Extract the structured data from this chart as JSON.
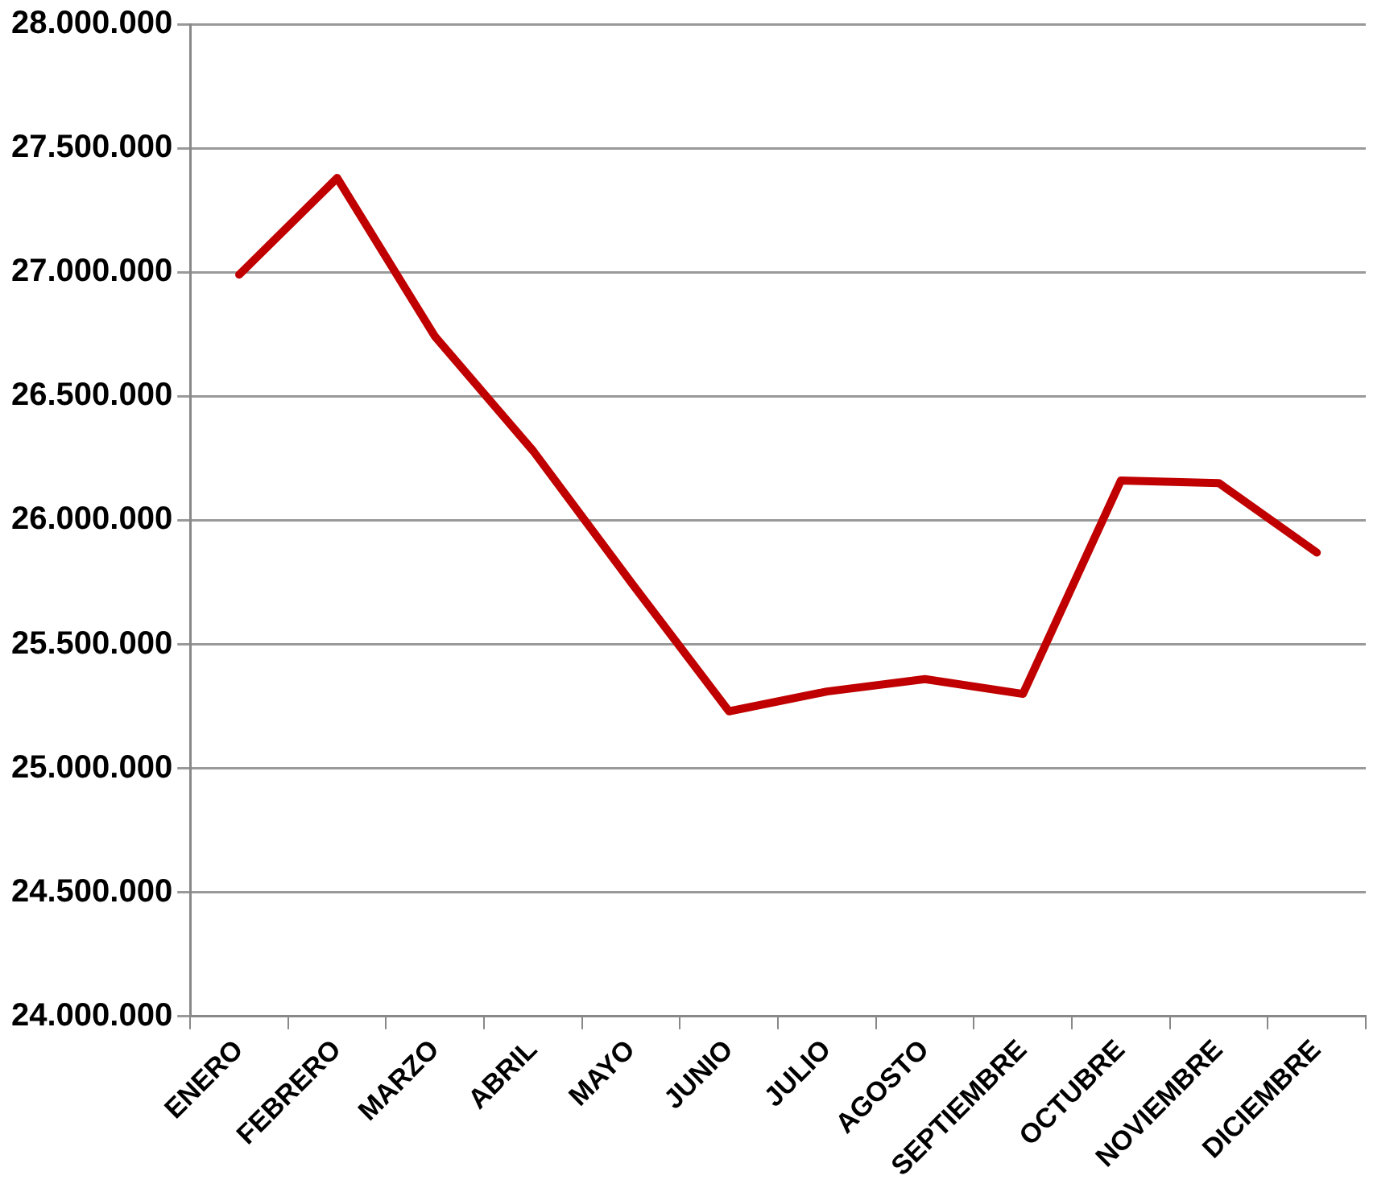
{
  "chart_data": {
    "type": "line",
    "categories": [
      "ENERO",
      "FEBRERO",
      "MARZO",
      "ABRIL",
      "MAYO",
      "JUNIO",
      "JULIO",
      "AGOSTO",
      "SEPTIEMBRE",
      "OCTUBRE",
      "NOVIEMBRE",
      "DICIEMBRE"
    ],
    "series": [
      {
        "color": "#c00000",
        "values": [
          26990000,
          27380000,
          26740000,
          26280000,
          25750000,
          25230000,
          25310000,
          25360000,
          25300000,
          26160000,
          26150000,
          25870000
        ]
      }
    ],
    "ylim": [
      24000000,
      28000000
    ],
    "yticks": [
      {
        "value": 24000000,
        "label": "24.000.000"
      },
      {
        "value": 24500000,
        "label": "24.500.000"
      },
      {
        "value": 25000000,
        "label": "25.000.000"
      },
      {
        "value": 25500000,
        "label": "25.500.000"
      },
      {
        "value": 26000000,
        "label": "26.000.000"
      },
      {
        "value": 26500000,
        "label": "26.500.000"
      },
      {
        "value": 27000000,
        "label": "27.000.000"
      },
      {
        "value": 27500000,
        "label": "27.500.000"
      },
      {
        "value": 28000000,
        "label": "28.000.000"
      }
    ],
    "grid": "y",
    "legend": false,
    "marker": "none",
    "line_style": "solid"
  }
}
